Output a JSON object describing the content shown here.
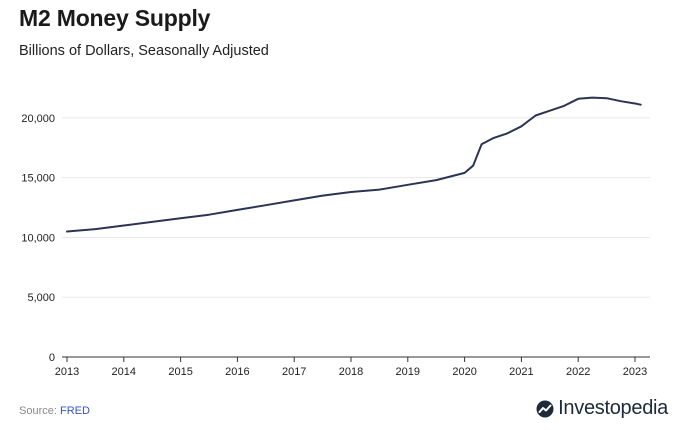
{
  "title": "M2 Money Supply",
  "subtitle": "Billions of Dollars, Seasonally Adjusted",
  "source_label": "Source:",
  "source_name": "FRED",
  "logo_text": "Investopedia",
  "colors": {
    "line": "#2b3553",
    "grid": "#e8e8e8",
    "axis": "#333333",
    "source_link": "#3355cc"
  },
  "chart_data": {
    "type": "line",
    "title": "M2 Money Supply",
    "subtitle": "Billions of Dollars, Seasonally Adjusted",
    "xlabel": "",
    "ylabel": "",
    "xlim": [
      2013,
      2023.3
    ],
    "ylim": [
      0,
      22500
    ],
    "grid": true,
    "x_ticks": [
      2013,
      2014,
      2015,
      2016,
      2017,
      2018,
      2019,
      2020,
      2021,
      2022,
      2023
    ],
    "x_tick_labels": [
      "2013",
      "2014",
      "2015",
      "2016",
      "2017",
      "2018",
      "2019",
      "2020",
      "2021",
      "2022",
      "2023"
    ],
    "y_ticks": [
      0,
      5000,
      10000,
      15000,
      20000
    ],
    "y_tick_labels": [
      "0",
      "5,000",
      "10,000",
      "15,000",
      "20,000"
    ],
    "series": [
      {
        "values": [
          [
            2013.0,
            10500
          ],
          [
            2013.5,
            10700
          ],
          [
            2014.0,
            11000
          ],
          [
            2014.5,
            11300
          ],
          [
            2015.0,
            11600
          ],
          [
            2015.5,
            11900
          ],
          [
            2016.0,
            12300
          ],
          [
            2016.5,
            12700
          ],
          [
            2017.0,
            13100
          ],
          [
            2017.5,
            13500
          ],
          [
            2018.0,
            13800
          ],
          [
            2018.5,
            14000
          ],
          [
            2019.0,
            14400
          ],
          [
            2019.5,
            14800
          ],
          [
            2019.75,
            15100
          ],
          [
            2020.0,
            15400
          ],
          [
            2020.15,
            16000
          ],
          [
            2020.3,
            17800
          ],
          [
            2020.5,
            18300
          ],
          [
            2020.75,
            18700
          ],
          [
            2021.0,
            19300
          ],
          [
            2021.25,
            20200
          ],
          [
            2021.5,
            20600
          ],
          [
            2021.75,
            21000
          ],
          [
            2022.0,
            21600
          ],
          [
            2022.25,
            21700
          ],
          [
            2022.5,
            21650
          ],
          [
            2022.75,
            21400
          ],
          [
            2023.0,
            21200
          ],
          [
            2023.1,
            21100
          ]
        ]
      }
    ]
  }
}
